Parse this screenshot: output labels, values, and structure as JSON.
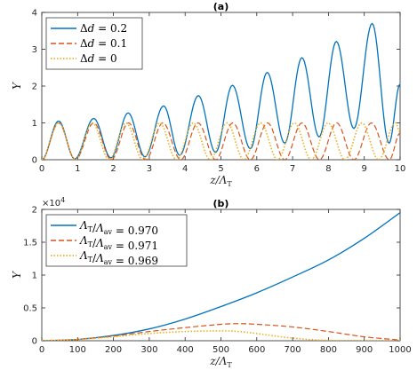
{
  "chart_data": [
    {
      "type": "line",
      "title": "(a)",
      "xlabel": "z/Λ_T",
      "ylabel": "Υ",
      "xlim": [
        0,
        10
      ],
      "ylim": [
        0,
        4
      ],
      "xticks": [
        "0",
        "1",
        "2",
        "3",
        "4",
        "5",
        "6",
        "7",
        "8",
        "9",
        "10"
      ],
      "yticks": [
        "0",
        "1",
        "2",
        "3",
        "4"
      ],
      "legend_position": "top-left",
      "grid": false,
      "series": [
        {
          "name": "Δd = 0.2",
          "color": "#0072BD",
          "style": "solid",
          "x": [
            0,
            0.47,
            0.92,
            1.45,
            1.93,
            2.41,
            2.88,
            3.4,
            3.85,
            4.37,
            4.85,
            5.32,
            5.82,
            6.29,
            6.78,
            7.26,
            7.74,
            8.22,
            8.71,
            9.22,
            9.69,
            10
          ],
          "y": [
            0,
            1.05,
            0.02,
            1.12,
            0.05,
            1.27,
            0.08,
            1.46,
            0.12,
            1.74,
            0.2,
            2.02,
            0.3,
            2.37,
            0.45,
            2.77,
            0.62,
            3.21,
            0.85,
            3.7,
            0.45,
            2.05
          ]
        },
        {
          "name": "Δd = 0.1",
          "color": "#D95319",
          "style": "dashed",
          "x": [
            0,
            0.47,
            0.94,
            1.45,
            1.94,
            2.42,
            2.9,
            3.38,
            3.88,
            4.36,
            4.85,
            5.33,
            5.82,
            6.3,
            6.78,
            7.26,
            7.75,
            8.23,
            8.71,
            9.2,
            9.7,
            10
          ],
          "y": [
            0,
            1.0,
            0,
            1.0,
            0,
            1.0,
            0,
            1.0,
            0,
            1.0,
            0,
            1.0,
            0,
            1.0,
            0,
            1.0,
            0,
            1.0,
            0,
            1.0,
            0,
            0.72
          ]
        },
        {
          "name": "Δd = 0",
          "color": "#EDB120",
          "style": "dotted",
          "x": [
            0,
            0.47,
            0.94,
            1.41,
            1.88,
            2.35,
            2.82,
            3.29,
            3.76,
            4.23,
            4.7,
            5.17,
            5.64,
            6.11,
            6.58,
            7.05,
            7.52,
            7.99,
            8.46,
            8.93,
            9.4,
            9.87,
            10
          ],
          "y": [
            0,
            1.0,
            0,
            1.0,
            0,
            1.0,
            0,
            1.0,
            0,
            1.0,
            0,
            1.0,
            0,
            1.0,
            0,
            1.0,
            0,
            1.0,
            0,
            1.0,
            0,
            1.0,
            0.75
          ]
        }
      ]
    },
    {
      "type": "line",
      "title": "(b)",
      "xlabel": "z/Λ_T",
      "ylabel": "Υ",
      "xlim": [
        0,
        1000
      ],
      "ylim": [
        0,
        2
      ],
      "y_multiplier": "×10",
      "y_multiplier_exp": "4",
      "xticks": [
        "0",
        "100",
        "200",
        "300",
        "400",
        "500",
        "600",
        "700",
        "800",
        "900",
        "1000"
      ],
      "yticks": [
        "0",
        "0.5",
        "1",
        "1.5",
        "2"
      ],
      "legend_position": "top-left",
      "grid": false,
      "series": [
        {
          "name": "Λ_T/Λ_av = 0.970",
          "color": "#0072BD",
          "style": "solid",
          "x": [
            0,
            100,
            200,
            300,
            400,
            500,
            600,
            700,
            800,
            900,
            1000
          ],
          "y": [
            0,
            0.02,
            0.08,
            0.18,
            0.33,
            0.52,
            0.73,
            0.97,
            1.23,
            1.56,
            1.95
          ]
        },
        {
          "name": "Λ_T/Λ_av = 0.971",
          "color": "#D95319",
          "style": "dashed",
          "x": [
            0,
            100,
            200,
            300,
            400,
            500,
            550,
            600,
            700,
            800,
            900,
            1000
          ],
          "y": [
            0,
            0.02,
            0.07,
            0.14,
            0.2,
            0.25,
            0.26,
            0.25,
            0.21,
            0.14,
            0.06,
            0.01
          ]
        },
        {
          "name": "Λ_T/Λ_av = 0.969",
          "color": "#EDB120",
          "style": "dotted",
          "x": [
            0,
            100,
            200,
            300,
            400,
            500,
            550,
            600,
            700,
            800,
            900,
            1000
          ],
          "y": [
            0,
            0.02,
            0.06,
            0.11,
            0.14,
            0.15,
            0.14,
            0.11,
            0.04,
            0.005,
            0,
            0
          ]
        }
      ]
    }
  ]
}
